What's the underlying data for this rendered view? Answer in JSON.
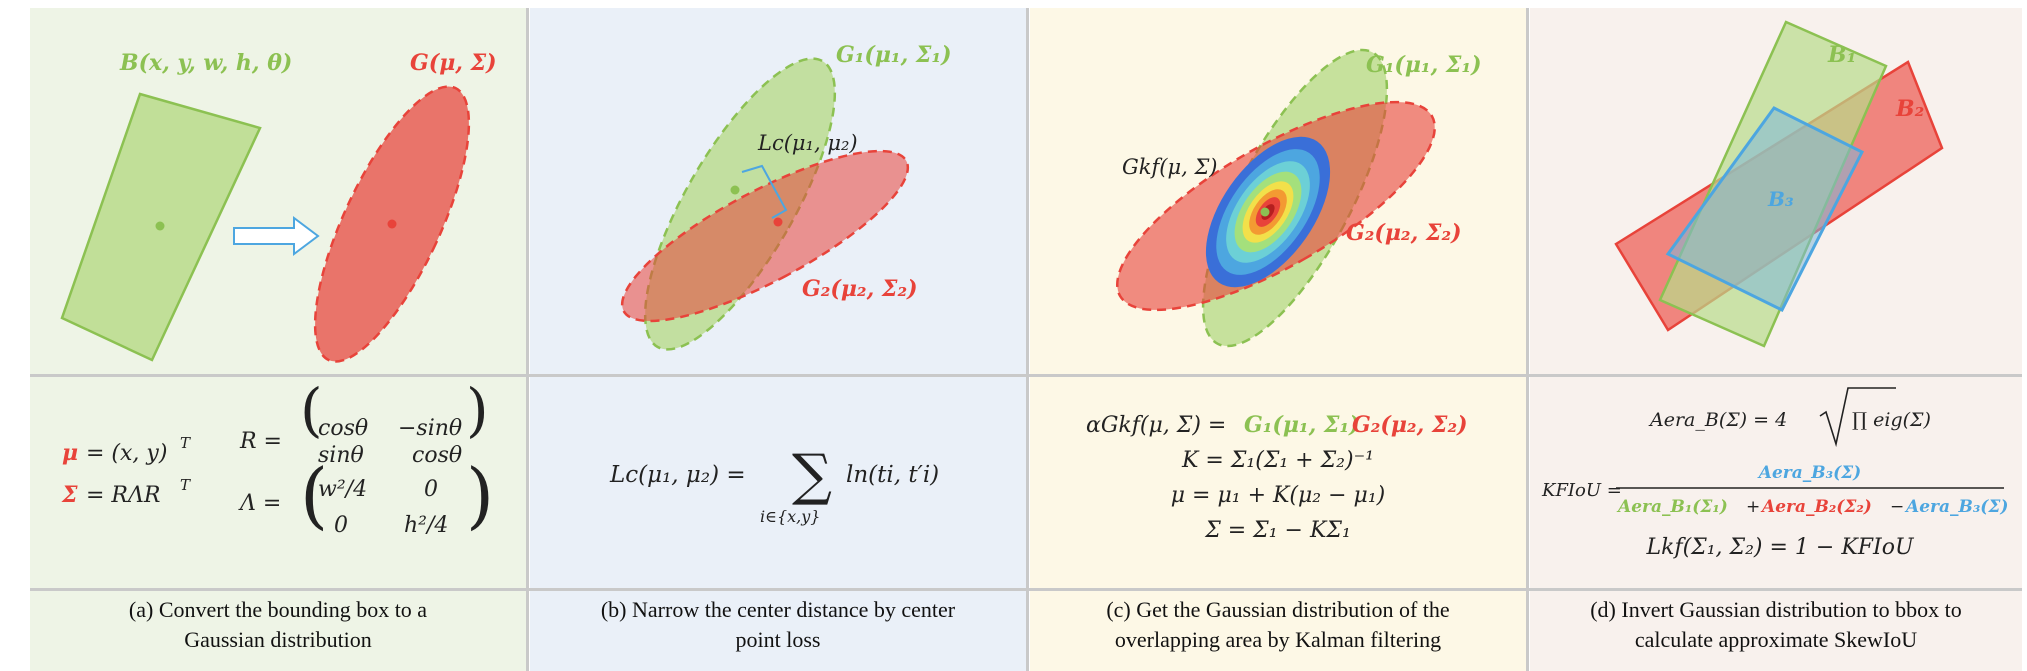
{
  "colors": {
    "green": "#8cc152",
    "red": "#e8433a",
    "blue": "#4da6e0",
    "ink": "#222222"
  },
  "panel_a": {
    "box_label": "B(x, y, w, h, θ)",
    "gauss_label": "G(μ, Σ)",
    "eq1_lhs_mu": "μ",
    "eq1_rhs": "= (x, y)",
    "eq1_sup": "T",
    "eq1_r": "R =",
    "eq1_cos": "cosθ",
    "eq1_msin": "−sinθ",
    "eq1_sin": "sinθ",
    "eq1_cos2": "cosθ",
    "eq2_sigma": "Σ",
    "eq2_rhs": "= RΛR",
    "eq2_sup": "T",
    "eq2_lambda": "Λ =",
    "eq2_w": "w²/4",
    "eq2_zero1": "0",
    "eq2_zero2": "0",
    "eq2_h": "h²/4",
    "caption_line1": "(a) Convert the bounding box to a",
    "caption_line2": "Gaussian distribution"
  },
  "panel_b": {
    "g1_label": "G₁(μ₁, Σ₁)",
    "g2_label": "G₂(μ₂, Σ₂)",
    "lc_label": "Lc(μ₁, μ₂)",
    "eq_lhs": "Lc(μ₁, μ₂) =",
    "eq_sum": "∑",
    "eq_sub": "i∈{x,y}",
    "eq_rhs": "ln(ti, t′i)",
    "caption_line1": "(b) Narrow the center distance by center",
    "caption_line2": "point loss"
  },
  "panel_c": {
    "g1_label": "G₁(μ₁, Σ₁)",
    "g2_label": "G₂(μ₂, Σ₂)",
    "gkf_label": "Gkf(μ, Σ)",
    "eq1": "αGkf(μ, Σ) =",
    "eq1_g1": "G₁(μ₁, Σ₁)",
    "eq1_g2": "G₂(μ₂, Σ₂)",
    "eq2": "K = Σ₁(Σ₁ + Σ₂)⁻¹",
    "eq3": "μ = μ₁ + K(μ₂ − μ₁)",
    "eq4": "Σ = Σ₁ − KΣ₁",
    "caption_line1": "(c) Get the Gaussian distribution of the",
    "caption_line2": "overlapping area by Kalman filtering"
  },
  "panel_d": {
    "b1_label": "B₁",
    "b2_label": "B₂",
    "b3_label": "B₃",
    "eq1": "Aera_B(Σ) = 4",
    "eq1_root": "∏ eig(Σ)",
    "eq2_lhs": "KFIoU =",
    "eq2_num": "Aera_B₃(Σ)",
    "eq2_den1": "Aera_B₁(Σ₁)",
    "eq2_den2": "Aera_B₂(Σ₂)",
    "eq2_den3": "Aera_B₃(Σ)",
    "eq3": "Lkf(Σ₁, Σ₂) = 1 − KFIoU",
    "caption_line1": "(d) Invert Gaussian distribution to bbox to",
    "caption_line2": "calculate approximate SkewIoU"
  }
}
